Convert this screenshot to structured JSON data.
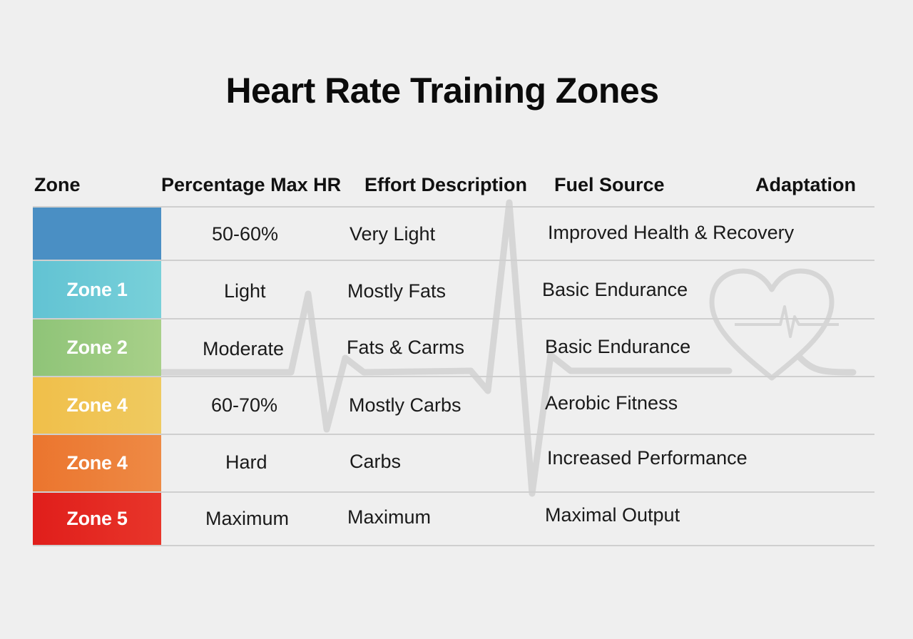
{
  "title": "Heart Rate Training Zones",
  "headers": {
    "zone": "Zone",
    "percent": "Percentage Max HR",
    "effort": "Effort Description",
    "fuel": "Fuel Source",
    "adaptation": "Adaptation"
  },
  "rows": [
    {
      "zone": "",
      "percent": "50-60%",
      "effort": "Very Light",
      "fuel": "Improved Health & Recovery",
      "color": "#4a8fc4"
    },
    {
      "zone": "Zone 1",
      "percent": "Light",
      "effort": "Mostly Fats",
      "fuel": "Basic Endurance",
      "color": "#6ccad6"
    },
    {
      "zone": "Zone 2",
      "percent": "Moderate",
      "effort": "Fats & Carms",
      "fuel": "Basic Endurance",
      "color": "#9ccb7e"
    },
    {
      "zone": "Zone 4",
      "percent": "60-70%",
      "effort": "Mostly Carbs",
      "fuel": "Aerobic Fitness",
      "color": "#f0c453"
    },
    {
      "zone": "Zone 4",
      "percent": "Hard",
      "effort": "Carbs",
      "fuel": "Increased Performance",
      "color": "#ec7c35"
    },
    {
      "zone": "Zone 5",
      "percent": "Maximum",
      "effort": "Maximum",
      "fuel": "Maximal Output",
      "color": "#e3231f"
    }
  ],
  "decor": {
    "ecg_line": "ecg-line",
    "heart_icon": "heart-icon"
  }
}
